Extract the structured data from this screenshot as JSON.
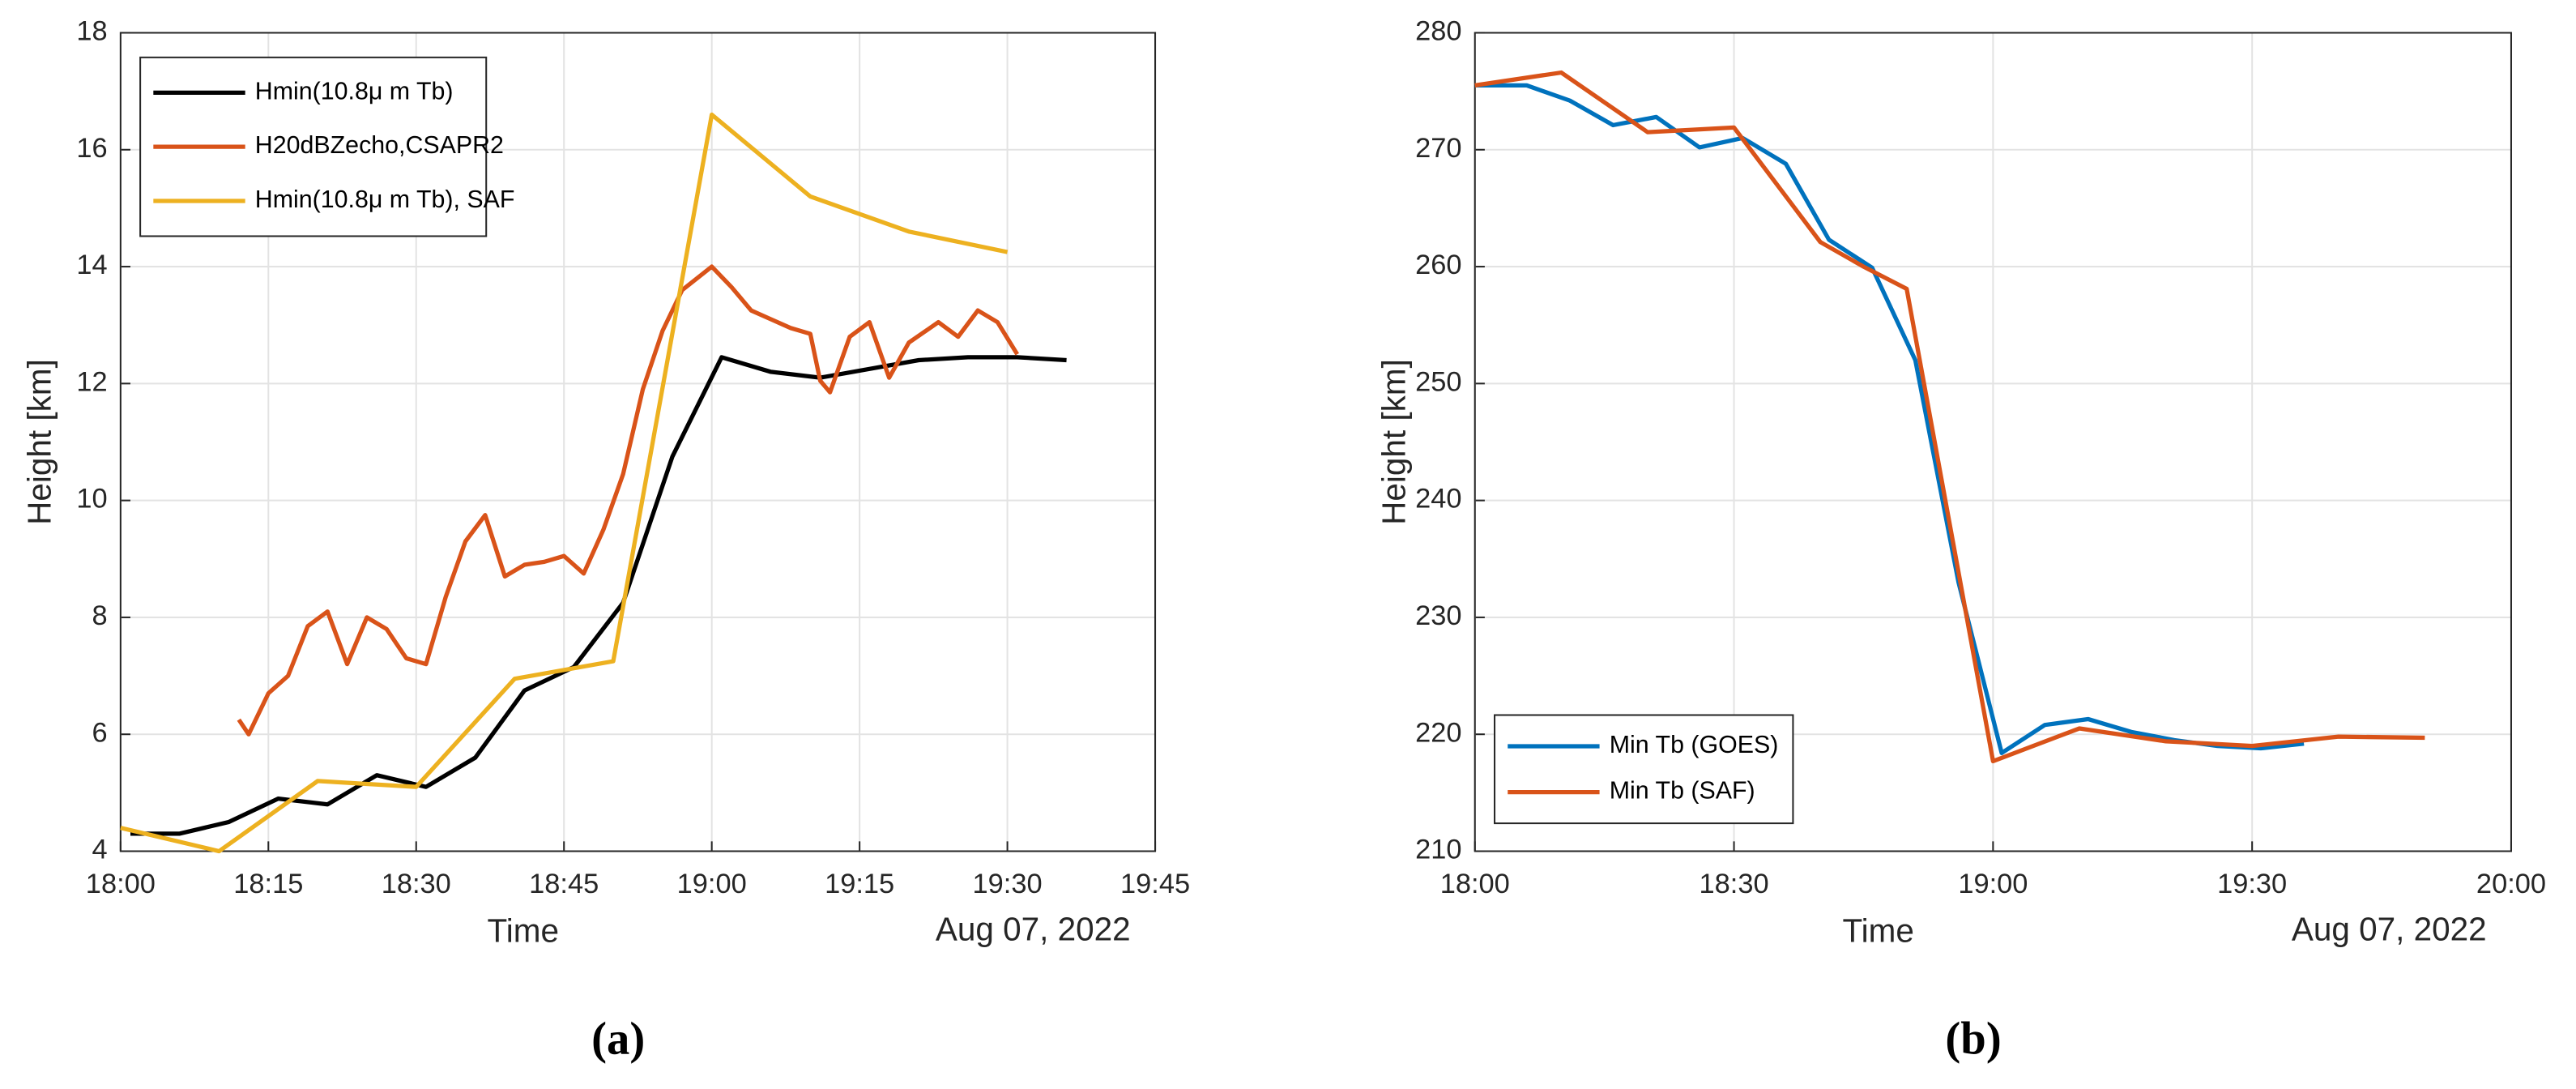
{
  "chart_data": [
    {
      "type": "line",
      "panel_label": "(a)",
      "x_label": "Time",
      "y_label": "Height [km]",
      "date_label": "Aug 07, 2022",
      "xlim": [
        "18:00",
        "19:45"
      ],
      "xticks": [
        "18:00",
        "18:15",
        "18:30",
        "18:45",
        "19:00",
        "19:15",
        "19:30",
        "19:45"
      ],
      "ylim": [
        4,
        18
      ],
      "yticks": [
        4,
        6,
        8,
        10,
        12,
        14,
        16,
        18
      ],
      "grid": true,
      "legend": "upper left",
      "series": [
        {
          "name": "Hmin(10.8μ m Tb)",
          "color": "#000000",
          "x": [
            "18:01",
            "18:06",
            "18:11",
            "18:16",
            "18:21",
            "18:26",
            "18:31",
            "18:36",
            "18:41",
            "18:46",
            "18:51",
            "18:56",
            "19:01",
            "19:06",
            "19:11",
            "19:16",
            "19:21",
            "19:26",
            "19:31",
            "19:36"
          ],
          "values": [
            4.3,
            4.3,
            4.5,
            4.9,
            4.8,
            5.3,
            5.1,
            5.6,
            6.75,
            7.15,
            8.25,
            10.75,
            12.45,
            12.2,
            12.1,
            12.25,
            12.4,
            12.45,
            12.45,
            12.4
          ]
        },
        {
          "name": "H20dBZecho,CSAPR2",
          "color": "#d95319",
          "x": [
            "18:12",
            "18:13",
            "18:15",
            "18:17",
            "18:19",
            "18:21",
            "18:23",
            "18:25",
            "18:27",
            "18:29",
            "18:31",
            "18:33",
            "18:35",
            "18:37",
            "18:39",
            "18:41",
            "18:43",
            "18:45",
            "18:47",
            "18:49",
            "18:51",
            "18:53",
            "18:55",
            "18:57",
            "19:00",
            "19:02",
            "19:04",
            "19:06",
            "19:08",
            "19:10",
            "19:11",
            "19:12",
            "19:14",
            "19:16",
            "19:18",
            "19:20",
            "19:23",
            "19:25",
            "19:27",
            "19:29",
            "19:31"
          ],
          "values": [
            6.25,
            6.0,
            6.7,
            7.0,
            7.85,
            8.1,
            7.2,
            8.0,
            7.8,
            7.3,
            7.2,
            8.35,
            9.3,
            9.75,
            8.7,
            8.9,
            8.95,
            9.05,
            8.75,
            9.5,
            10.45,
            11.9,
            12.9,
            13.6,
            14.0,
            13.65,
            13.25,
            13.1,
            12.95,
            12.85,
            12.05,
            11.85,
            12.8,
            13.05,
            12.1,
            12.7,
            13.05,
            12.8,
            13.25,
            13.05,
            12.5
          ]
        },
        {
          "name": "Hmin(10.8μ m Tb), SAF",
          "color": "#edb120",
          "x": [
            "18:00",
            "18:10",
            "18:20",
            "18:30",
            "18:40",
            "18:50",
            "19:00",
            "19:10",
            "19:20",
            "19:30"
          ],
          "values": [
            4.4,
            4.0,
            5.2,
            5.1,
            6.95,
            7.25,
            16.6,
            15.2,
            14.6,
            14.25
          ]
        }
      ]
    },
    {
      "type": "line",
      "panel_label": "(b)",
      "x_label": "Time",
      "y_label": "Height [km]",
      "date_label": "Aug 07, 2022",
      "xlim": [
        "18:00",
        "20:00"
      ],
      "xticks": [
        "18:00",
        "18:30",
        "19:00",
        "19:30",
        "20:00"
      ],
      "ylim": [
        210,
        280
      ],
      "yticks": [
        210,
        220,
        230,
        240,
        250,
        260,
        270,
        280
      ],
      "grid": true,
      "legend": "lower left",
      "series": [
        {
          "name": "Min Tb (GOES)",
          "color": "#0072bd",
          "x": [
            "18:00",
            "18:06",
            "18:11",
            "18:16",
            "18:21",
            "18:26",
            "18:31",
            "18:36",
            "18:41",
            "18:46",
            "18:51",
            "18:56",
            "19:01",
            "19:06",
            "19:11",
            "19:16",
            "19:21",
            "19:26",
            "19:31",
            "19:36"
          ],
          "values": [
            275.5,
            275.5,
            274.2,
            272.1,
            272.8,
            270.2,
            271.0,
            268.8,
            262.3,
            259.9,
            252.0,
            233,
            218.4,
            220.8,
            221.3,
            220.2,
            219.5,
            219.0,
            218.8,
            219.2
          ]
        },
        {
          "name": "Min Tb (SAF)",
          "color": "#d95319",
          "x": [
            "18:00",
            "18:10",
            "18:20",
            "18:30",
            "18:40",
            "18:45",
            "18:50",
            "19:00",
            "19:10",
            "19:20",
            "19:30",
            "19:40",
            "19:50"
          ],
          "values": [
            275.5,
            276.6,
            271.5,
            271.9,
            262.1,
            260,
            258.1,
            217.7,
            220.5,
            219.4,
            219.0,
            219.8,
            219.7
          ]
        }
      ]
    }
  ]
}
